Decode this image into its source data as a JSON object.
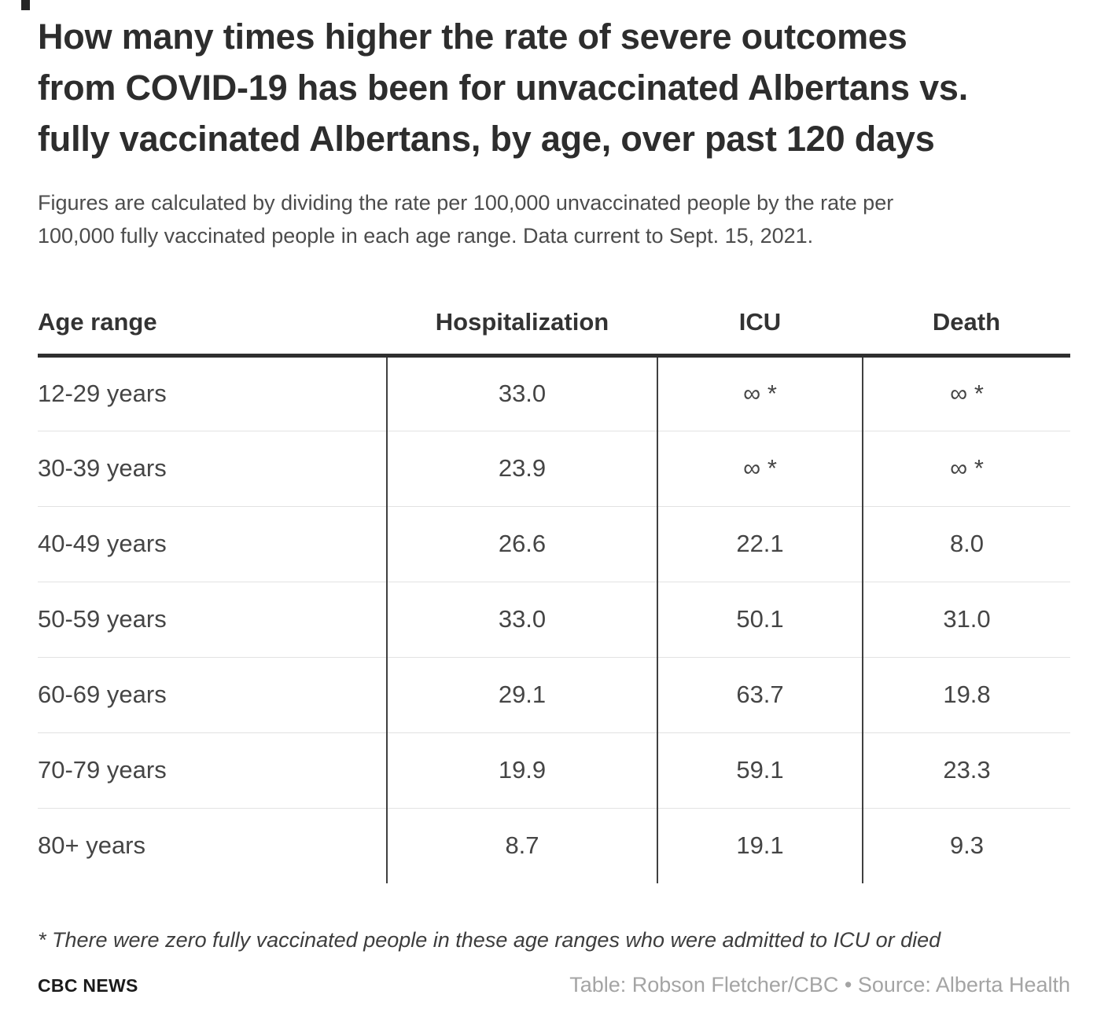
{
  "header": {
    "title": "How many times higher the rate of severe outcomes from COVID-19 has been for unvaccinated Albertans vs. fully vaccinated Albertans, by age, over past 120 days",
    "title_lines": [
      "How many times higher the rate of severe outcomes",
      "from COVID-19 has been for unvaccinated Albertans vs.",
      "fully vaccinated Albertans, by age, over past 120 days"
    ],
    "subtitle_lines": [
      "Figures are calculated by dividing the rate per 100,000 unvaccinated people by the rate per",
      "100,000 fully vaccinated people in each age range. Data current to Sept. 15, 2021."
    ]
  },
  "table": {
    "columns": [
      "Age range",
      "Hospitalization",
      "ICU",
      "Death"
    ],
    "rows": [
      {
        "age": "12-29 years",
        "hospitalization": "33.0",
        "icu": "∞ *",
        "death": "∞ *"
      },
      {
        "age": "30-39 years",
        "hospitalization": "23.9",
        "icu": "∞ *",
        "death": "∞ *"
      },
      {
        "age": "40-49 years",
        "hospitalization": "26.6",
        "icu": "22.1",
        "death": "8.0"
      },
      {
        "age": "50-59 years",
        "hospitalization": "33.0",
        "icu": "50.1",
        "death": "31.0"
      },
      {
        "age": "60-69 years",
        "hospitalization": "29.1",
        "icu": "63.7",
        "death": "19.8"
      },
      {
        "age": "70-79 years",
        "hospitalization": "19.9",
        "icu": "59.1",
        "death": "23.3"
      },
      {
        "age": "80+ years",
        "hospitalization": "8.7",
        "icu": "19.1",
        "death": "9.3"
      }
    ]
  },
  "footnote": "* There were zero fully vaccinated people in these age ranges who were admitted to ICU or died",
  "footer": {
    "brand": "CBC NEWS",
    "credit": "Table: Robson Fletcher/CBC • Source: Alberta Health"
  },
  "colors": {
    "title_text": "#2d2d2d",
    "header_rule": "#2f2f2f",
    "column_separator": "#404040",
    "row_separator": "#e2e2e2",
    "credit_gray": "#a4a4a4"
  },
  "chart_data": {
    "type": "table",
    "title": "How many times higher the rate of severe outcomes from COVID-19 has been for unvaccinated Albertans vs. fully vaccinated Albertans, by age, over past 120 days",
    "subtitle": "Figures are calculated by dividing the rate per 100,000 unvaccinated people by the rate per 100,000 fully vaccinated people in each age range. Data current to Sept. 15, 2021.",
    "columns": [
      "Age range",
      "Hospitalization",
      "ICU",
      "Death"
    ],
    "rows": [
      [
        "12-29 years",
        "33.0",
        "∞ *",
        "∞ *"
      ],
      [
        "30-39 years",
        "23.9",
        "∞ *",
        "∞ *"
      ],
      [
        "40-49 years",
        "26.6",
        "22.1",
        "8.0"
      ],
      [
        "50-59 years",
        "33.0",
        "50.1",
        "31.0"
      ],
      [
        "60-69 years",
        "29.1",
        "63.7",
        "19.8"
      ],
      [
        "70-79 years",
        "19.9",
        "59.1",
        "23.3"
      ],
      [
        "80+ years",
        "8.7",
        "19.1",
        "9.3"
      ]
    ],
    "footnote": "* There were zero fully vaccinated people in these age ranges who were admitted to ICU or died",
    "credit": "Table: Robson Fletcher/CBC",
    "source": "Alberta Health"
  }
}
